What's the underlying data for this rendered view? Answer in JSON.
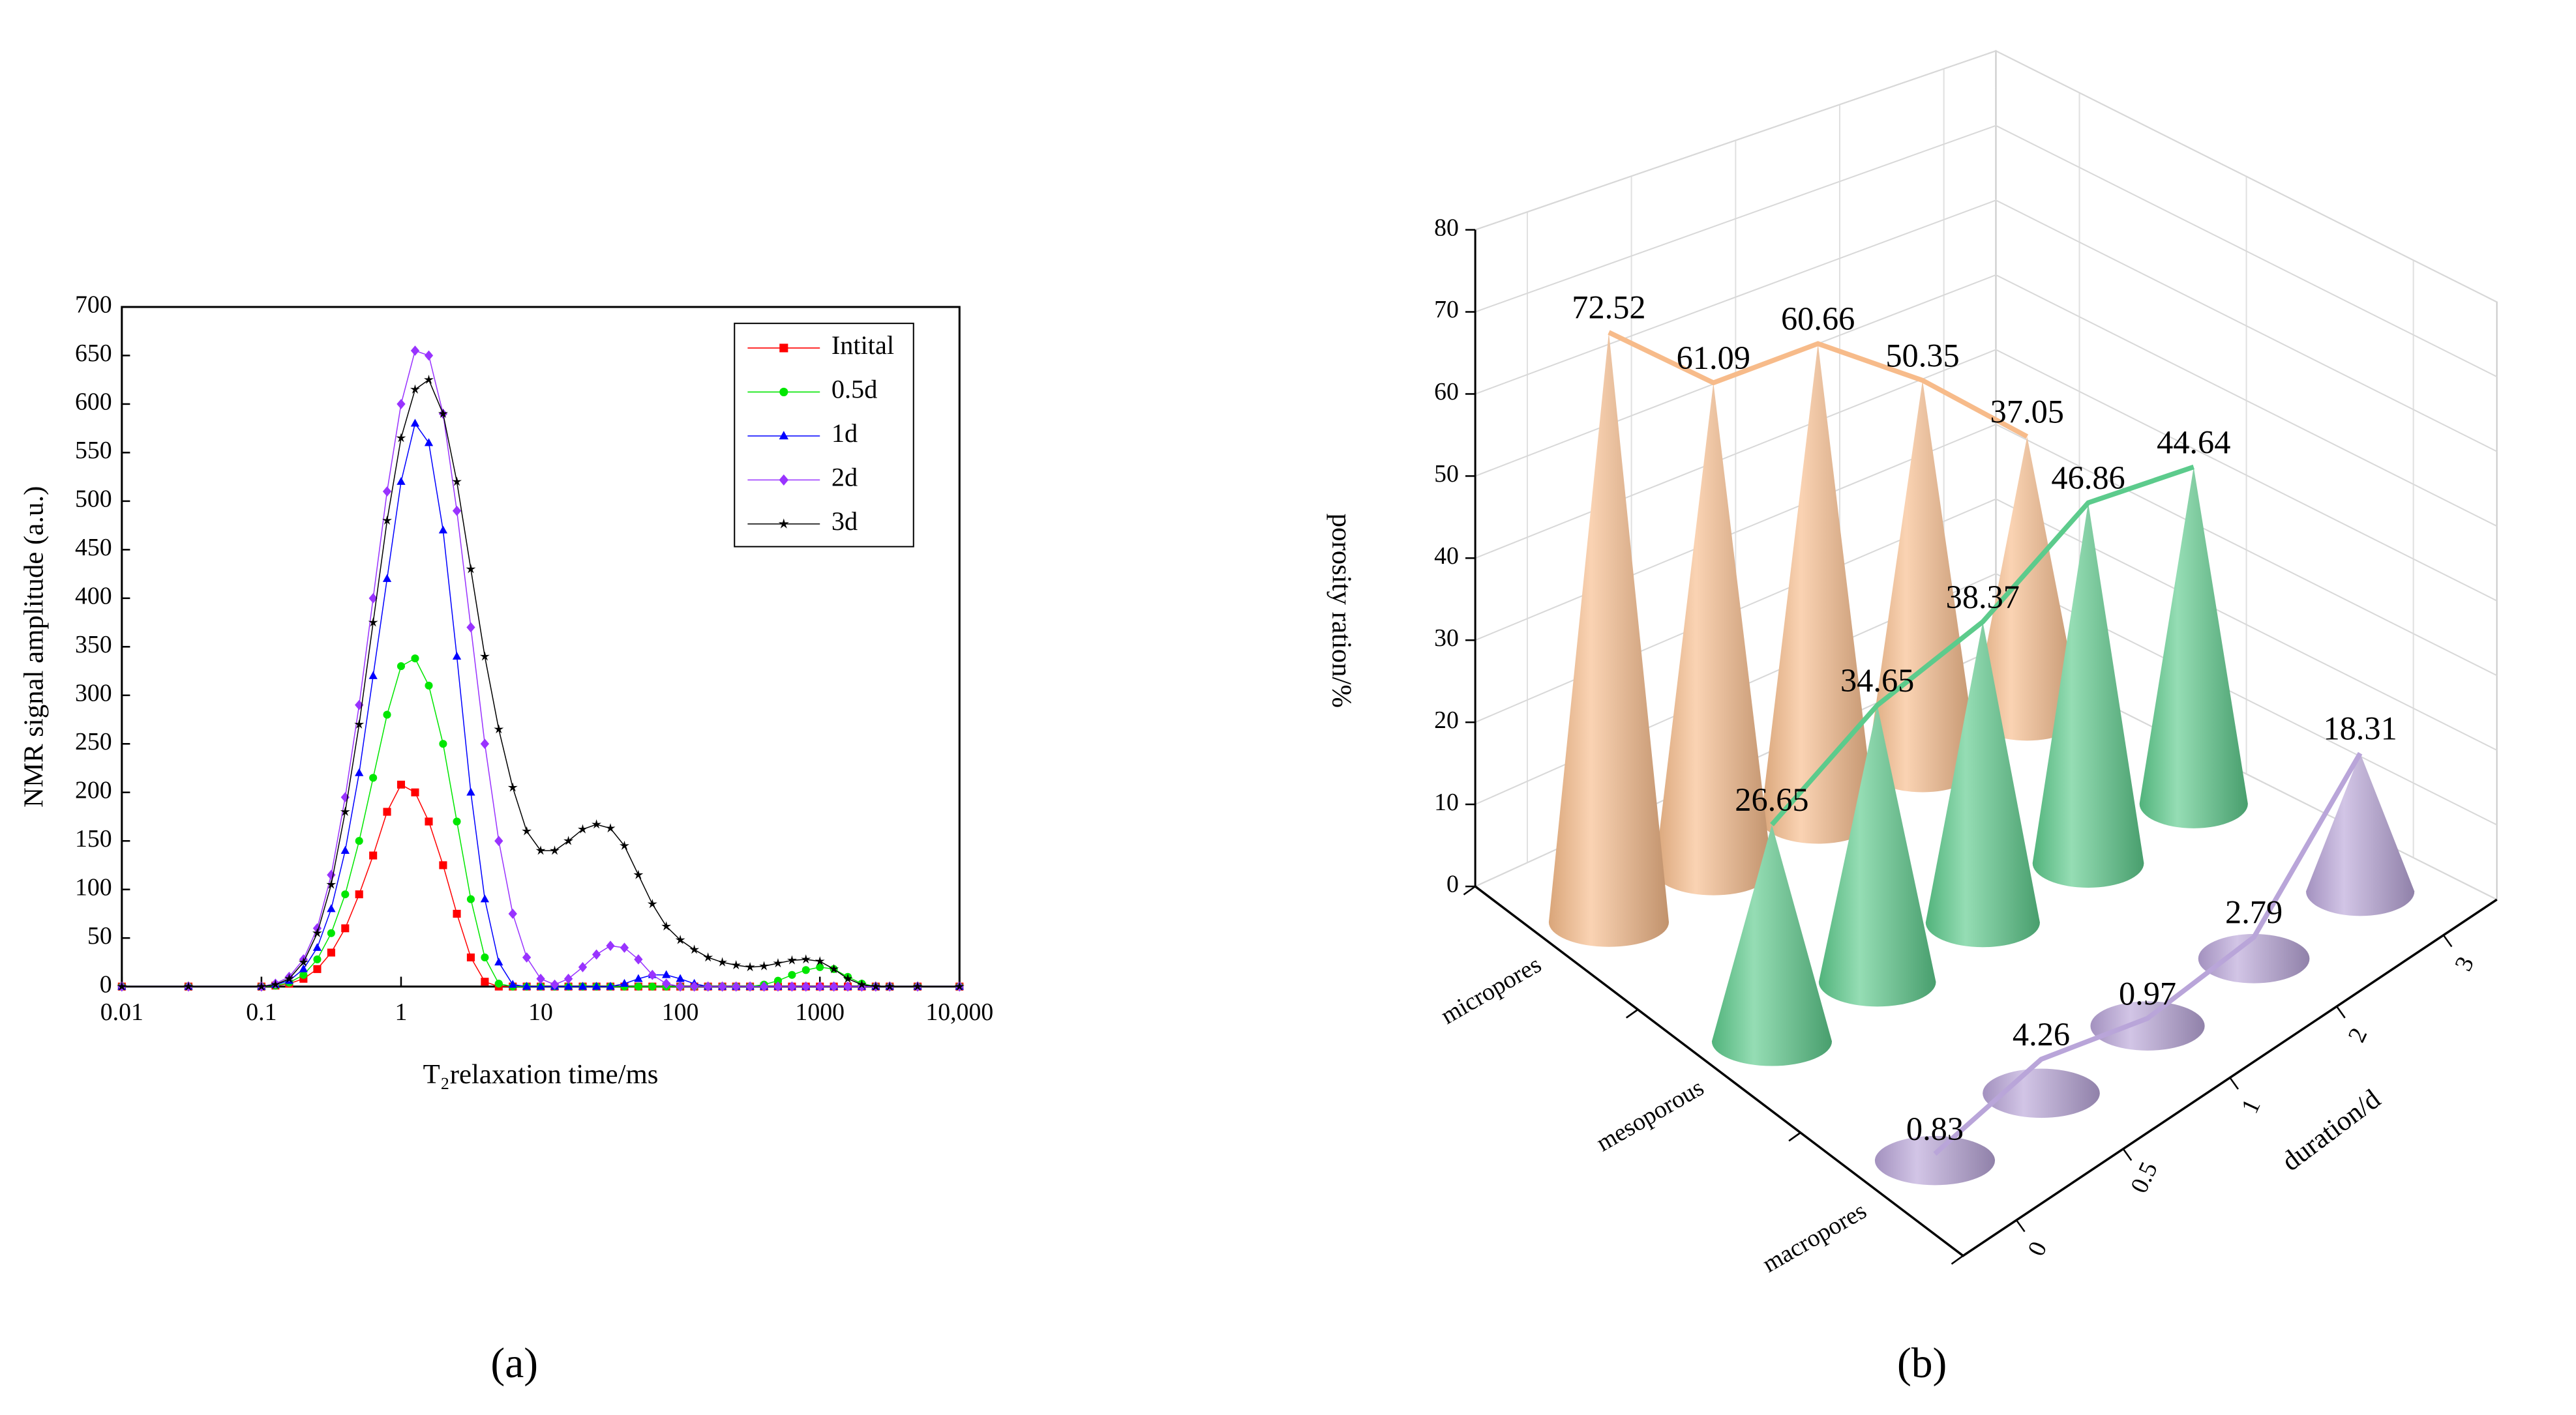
{
  "chart_data": [
    {
      "type": "line",
      "label": "(a)",
      "x_label": "T₂relaxation time/ms",
      "y_label": "NMR signal amplitude (a.u.)",
      "x": [
        0.01,
        0.03,
        0.1,
        0.126,
        0.158,
        0.2,
        0.251,
        0.316,
        0.398,
        0.501,
        0.631,
        0.794,
        1,
        1.26,
        1.58,
        2,
        2.51,
        3.16,
        3.98,
        5.01,
        6.31,
        7.94,
        10,
        12.6,
        15.8,
        20,
        25.1,
        31.6,
        39.8,
        50.1,
        63.1,
        79.4,
        100,
        126,
        158,
        200,
        251,
        316,
        398,
        501,
        631,
        794,
        1000,
        1259,
        1585,
        1995,
        2512,
        3162,
        5012,
        10000
      ],
      "xlog": true,
      "xlim": [
        0.01,
        10000
      ],
      "xticks": [
        0.01,
        0.1,
        1,
        10,
        100,
        1000,
        {
          "value": 10000,
          "label": "10,000"
        }
      ],
      "ylim": [
        0,
        700
      ],
      "yticks": [
        0,
        50,
        100,
        150,
        200,
        250,
        300,
        350,
        400,
        450,
        500,
        550,
        600,
        650,
        700
      ],
      "legend": "upper right",
      "series": [
        {
          "name": "Intital",
          "color": "#ff0000",
          "marker": "square",
          "values": [
            0,
            0,
            0,
            1,
            3,
            8,
            18,
            35,
            60,
            95,
            135,
            180,
            208,
            200,
            170,
            125,
            75,
            30,
            5,
            0,
            0,
            0,
            0,
            0,
            0,
            0,
            0,
            0,
            0,
            0,
            0,
            0,
            0,
            0,
            0,
            0,
            0,
            0,
            0,
            0,
            0,
            0,
            0,
            0,
            0,
            0,
            0,
            0,
            0,
            0
          ]
        },
        {
          "name": "0.5d",
          "color": "#00e600",
          "marker": "circle",
          "values": [
            0,
            0,
            0,
            1,
            4,
            12,
            28,
            55,
            95,
            150,
            215,
            280,
            330,
            338,
            310,
            250,
            170,
            90,
            30,
            3,
            0,
            0,
            0,
            0,
            0,
            0,
            0,
            0,
            0,
            0,
            0,
            0,
            0,
            0,
            0,
            0,
            0,
            0,
            2,
            6,
            12,
            17,
            20,
            18,
            10,
            3,
            0,
            0,
            0,
            0
          ]
        },
        {
          "name": "1d",
          "color": "#0000ff",
          "marker": "triangle",
          "values": [
            0,
            0,
            0,
            2,
            6,
            18,
            40,
            80,
            140,
            220,
            320,
            420,
            520,
            580,
            560,
            470,
            340,
            200,
            90,
            25,
            2,
            0,
            0,
            0,
            0,
            0,
            0,
            0,
            3,
            8,
            12,
            12,
            8,
            3,
            0,
            0,
            0,
            0,
            0,
            0,
            0,
            0,
            0,
            0,
            0,
            0,
            0,
            0,
            0,
            0
          ]
        },
        {
          "name": "2d",
          "color": "#9933ff",
          "marker": "diamond",
          "values": [
            0,
            0,
            0,
            3,
            10,
            28,
            60,
            115,
            195,
            290,
            400,
            510,
            600,
            655,
            650,
            590,
            490,
            370,
            250,
            150,
            75,
            30,
            8,
            2,
            8,
            20,
            33,
            42,
            40,
            28,
            12,
            3,
            0,
            0,
            0,
            0,
            0,
            0,
            0,
            0,
            0,
            0,
            0,
            0,
            0,
            0,
            0,
            0,
            0,
            0
          ]
        },
        {
          "name": "3d",
          "color": "#000000",
          "marker": "star",
          "values": [
            0,
            0,
            0,
            2,
            8,
            25,
            55,
            105,
            180,
            270,
            375,
            480,
            565,
            615,
            625,
            590,
            520,
            430,
            340,
            265,
            205,
            160,
            140,
            140,
            150,
            162,
            167,
            163,
            145,
            115,
            85,
            62,
            48,
            38,
            30,
            25,
            22,
            20,
            21,
            24,
            27,
            28,
            26,
            18,
            8,
            2,
            0,
            0,
            0,
            0
          ]
        }
      ]
    },
    {
      "type": "cone3d",
      "label": "(b)",
      "z_label": "porosity ration/%",
      "y_label": "duration/d",
      "categories": [
        "0",
        "0.5",
        "1",
        "2",
        "3"
      ],
      "zlim": [
        0,
        80
      ],
      "zticks": [
        0,
        10,
        20,
        30,
        40,
        50,
        60,
        70,
        80
      ],
      "series": [
        {
          "name": "micropores",
          "color": "#f7bb8a",
          "values": [
            72.52,
            61.09,
            60.66,
            50.35,
            37.05
          ]
        },
        {
          "name": "mesoporous",
          "color": "#5ccb8c",
          "values": [
            26.65,
            34.65,
            38.37,
            46.86,
            44.64
          ]
        },
        {
          "name": "macropores",
          "color": "#b9a5d9",
          "values": [
            0.83,
            4.26,
            0.97,
            2.79,
            18.31
          ]
        }
      ]
    }
  ]
}
